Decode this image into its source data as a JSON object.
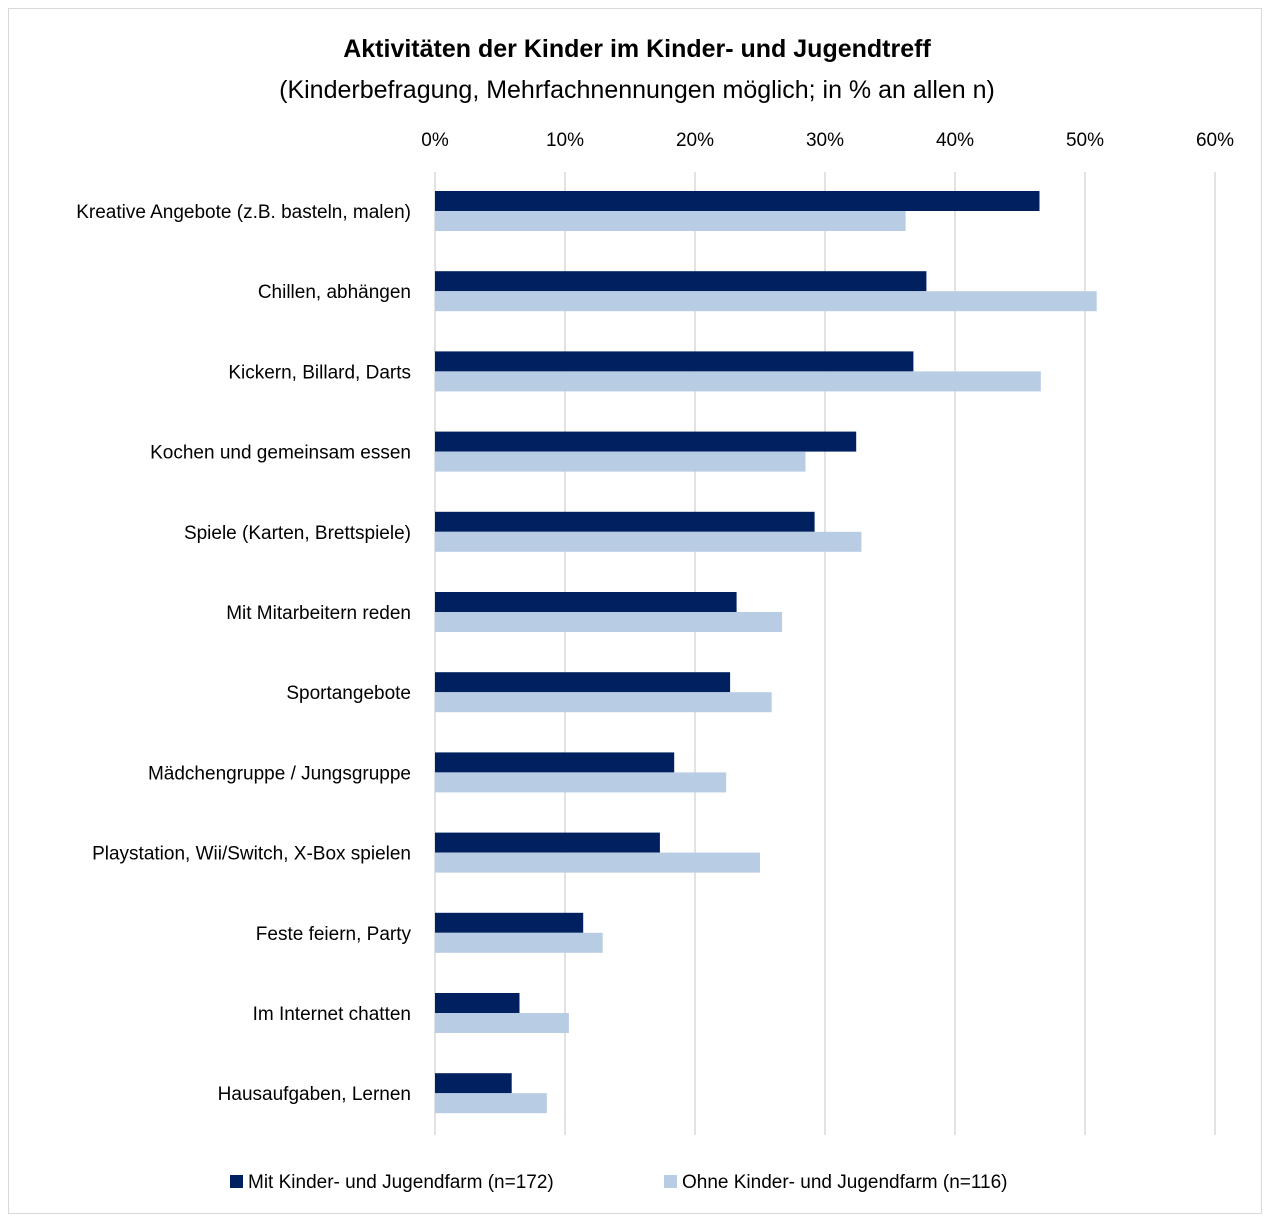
{
  "chart_data": {
    "type": "bar",
    "orientation": "horizontal",
    "title": "Aktivitäten der Kinder im Kinder- und Jugendtreff",
    "subtitle": "(Kinderbefragung, Mehrfachnennungen möglich; in % an allen n)",
    "xlim": [
      0,
      60
    ],
    "x_ticks": [
      "0%",
      "10%",
      "20%",
      "30%",
      "40%",
      "50%",
      "60%"
    ],
    "x_tick_values": [
      0,
      10,
      20,
      30,
      40,
      50,
      60
    ],
    "axis_position": "top",
    "grid": true,
    "legend_position": "bottom",
    "categories": [
      "Kreative Angebote (z.B. basteln, malen)",
      "Chillen, abhängen",
      "Kickern, Billard, Darts",
      "Kochen und gemeinsam essen",
      "Spiele (Karten, Brettspiele)",
      "Mit Mitarbeitern reden",
      "Sportangebote",
      "Mädchengruppe / Jungsgruppe",
      "Playstation, Wii/Switch, X-Box spielen",
      "Feste feiern, Party",
      "Im Internet chatten",
      "Hausaufgaben, Lernen"
    ],
    "series": [
      {
        "name": "Mit Kinder- und Jugendfarm (n=172)",
        "color": "#002060",
        "values": [
          46.5,
          37.8,
          36.8,
          32.4,
          29.2,
          23.2,
          22.7,
          18.4,
          17.3,
          11.4,
          6.5,
          5.9
        ]
      },
      {
        "name": "Ohne Kinder- und Jugendfarm (n=116)",
        "color": "#b8cce4",
        "values": [
          36.2,
          50.9,
          46.6,
          28.5,
          32.8,
          26.7,
          25.9,
          22.4,
          25.0,
          12.9,
          10.3,
          8.6
        ]
      }
    ]
  }
}
